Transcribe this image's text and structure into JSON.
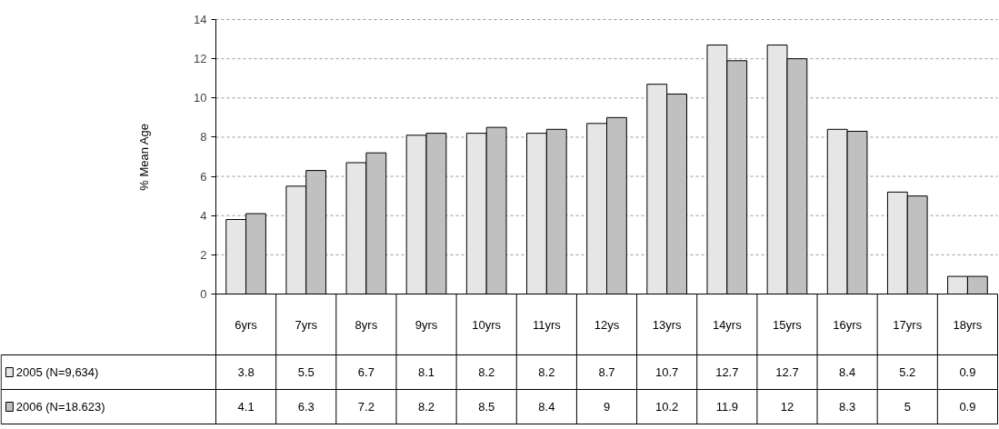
{
  "chart_data": {
    "type": "bar",
    "ylabel": "% Mean Age",
    "categories": [
      "6yrs",
      "7yrs",
      "8yrs",
      "9yrs",
      "10yrs",
      "11yrs",
      "12ys",
      "13yrs",
      "14yrs",
      "15yrs",
      "16yrs",
      "17yrs",
      "18yrs"
    ],
    "series": [
      {
        "name": "2005 (N=9,634)",
        "color": "#e6e6e6",
        "values": [
          3.8,
          5.5,
          6.7,
          8.1,
          8.2,
          8.2,
          8.7,
          10.7,
          12.7,
          12.7,
          8.4,
          5.2,
          0.9
        ]
      },
      {
        "name": "2006 (N=18.623)",
        "color": "#c0c0c0",
        "values": [
          4.1,
          6.3,
          7.2,
          8.2,
          8.5,
          8.4,
          9,
          10.2,
          11.9,
          12,
          8.3,
          5,
          0.9
        ]
      }
    ],
    "ylim": [
      0,
      14
    ],
    "yticks": [
      0,
      2,
      4,
      6,
      8,
      10,
      12,
      14
    ],
    "grid": "y",
    "legend": "bottom left",
    "data_labels": true
  }
}
